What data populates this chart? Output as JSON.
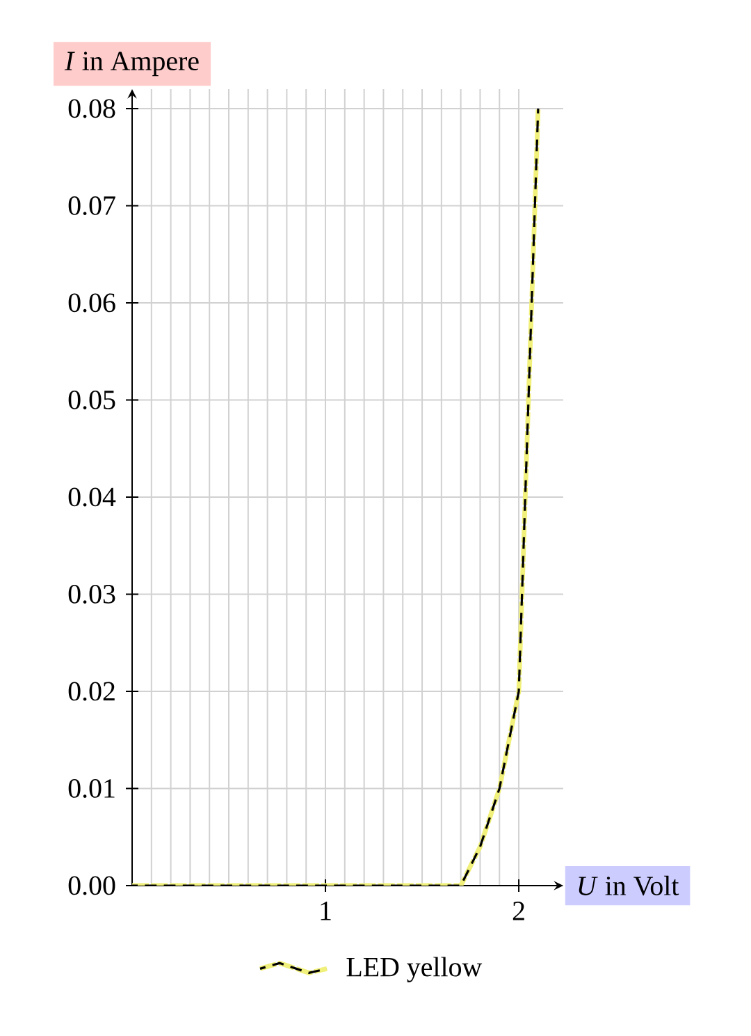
{
  "chart_data": {
    "type": "line",
    "xlabel": "*U* in Volt",
    "ylabel": "*I* in Ampere",
    "x": [
      0,
      1.7,
      1.8,
      1.9,
      2.0,
      2.1
    ],
    "series": [
      {
        "name": "LED yellow",
        "color": "#f0f07a",
        "values": [
          0,
          0,
          0.004,
          0.01,
          0.02,
          0.08
        ]
      }
    ],
    "xlim": [
      0,
      2.23
    ],
    "ylim": [
      0,
      0.082
    ],
    "xticks": [
      {
        "value": 0.1,
        "label": null
      },
      {
        "value": 0.2,
        "label": null
      },
      {
        "value": 0.3,
        "label": null
      },
      {
        "value": 0.4,
        "label": null
      },
      {
        "value": 0.5,
        "label": null
      },
      {
        "value": 0.6,
        "label": null
      },
      {
        "value": 0.7,
        "label": null
      },
      {
        "value": 0.8,
        "label": null
      },
      {
        "value": 0.9,
        "label": null
      },
      1,
      {
        "value": 1.1,
        "label": null
      },
      {
        "value": 1.2,
        "label": null
      },
      {
        "value": 1.3,
        "label": null
      },
      {
        "value": 1.4,
        "label": null
      },
      {
        "value": 1.5,
        "label": null
      },
      {
        "value": 1.6,
        "label": null
      },
      {
        "value": 1.7,
        "label": null
      },
      {
        "value": 1.8,
        "label": null
      },
      {
        "value": 1.9,
        "label": null
      },
      2
    ],
    "yticks": [
      {
        "value": 0,
        "label": "0.00"
      },
      0.01,
      0.02,
      0.03,
      0.04,
      0.05,
      0.06,
      0.07,
      0.08
    ],
    "grid": true,
    "legend": "bottom",
    "line_style": "dashed"
  }
}
